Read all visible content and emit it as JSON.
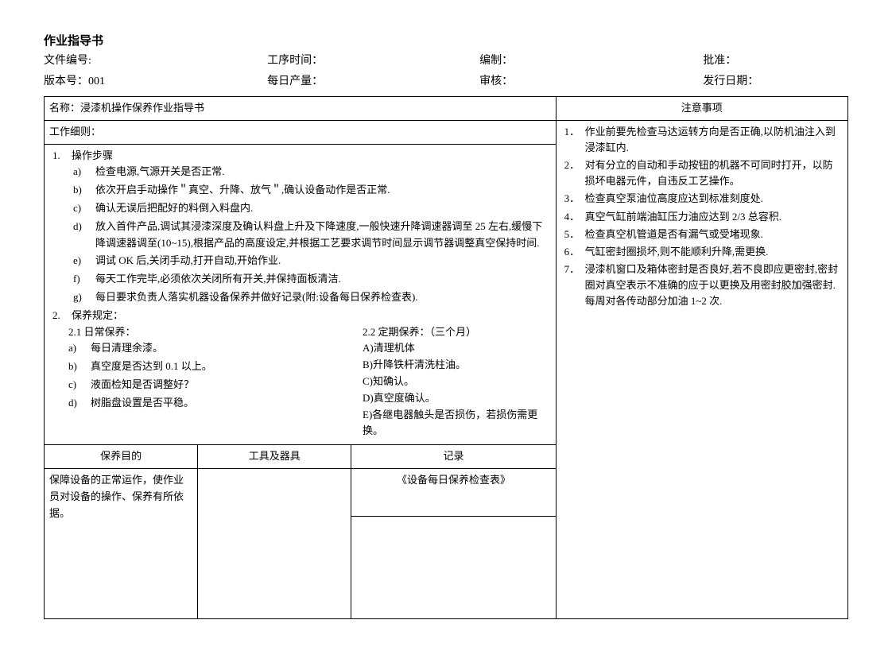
{
  "doc_title": "作业指导书",
  "meta": {
    "row1": {
      "c1": "文件编号:",
      "c2": "工序时间：",
      "c3": "编制：",
      "c4": "批准："
    },
    "row2": {
      "c1": "版本号：001",
      "c2": "每日产量：",
      "c3": "审核：",
      "c4": "发行日期："
    }
  },
  "name_label": "名称：浸漆机操作保养作业指导书",
  "notice_title": "注意事项",
  "work_detail_label": "工作细则：",
  "steps_title": "操作步骤",
  "steps": [
    "检查电源,气源开关是否正常.",
    "依次开启手动操作＂真空、升降、放气＂,确认设备动作是否正常.",
    "确认无误后把配好的料倒入料盘内.",
    "放入首件产品,调试其浸漆深度及确认料盘上升及下降速度,一般快速升降调速器调至 25 左右,缓慢下降调速器调至(10~15),根据产品的高度设定,并根据工艺要求调节时间显示调节器调整真空保持时间.",
    "调试 OK 后,关闭手动,打开自动,开始作业.",
    "每天工作完毕,必须依次关闭所有开关,并保持面板清洁.",
    "每日要求负责人落实机器设备保养并做好记录(附:设备每日保养检查表)."
  ],
  "maint_title": "保养规定：",
  "daily_title": "2.1  日常保养：",
  "daily_items": [
    "每日清理余漆。",
    "真空度是否达到 0.1 以上。",
    "液面检知是否调整好？",
    "树脂盘设置是否平稳。"
  ],
  "periodic_title": "2.2  定期保养：（三个月）",
  "periodic_items": [
    "A)清理机体",
    " B)升降铁杆清洗柱油。",
    "C)知确认。",
    "D)真空度确认。",
    "E)各继电器触头是否损伤，若损伤需更换。"
  ],
  "sub_headers": {
    "purpose": "保养目的",
    "tools": "工具及器具",
    "record": "记录"
  },
  "purpose_text": "保障设备的正常运作，使作业员对设备的操作、保养有所依据。",
  "record_text": "《设备每日保养检查表》",
  "notices": [
    "作业前要先检查马达运转方向是否正确,以防机油注入到浸漆缸内.",
    "对有分立的自动和手动按钮的机器不可同时打开，以防损坏电器元件，自违反工艺操作。",
    "检查真空泵油位高度应达到标准刻度处.",
    "真空气缸前端油缸压力油应达到 2/3 总容积.",
    "检查真空机管道是否有漏气或受堵现象.",
    "气缸密封圈损坏,则不能顺利升降,需更换.",
    "浸漆机窗口及箱体密封是否良好,若不良即应更密封,密封圈对真空表示不准确的应于以更换及用密封胶加强密封.每周对各传动部分加油 1~2 次."
  ]
}
